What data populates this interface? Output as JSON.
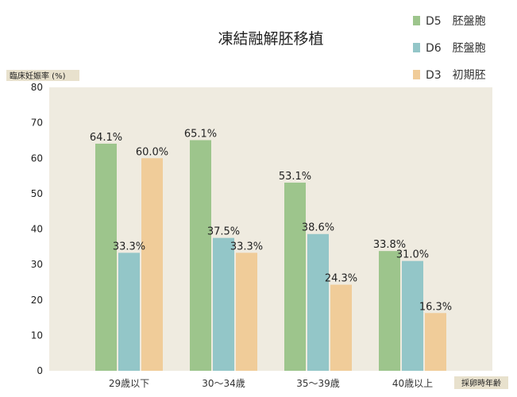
{
  "chart_data": {
    "type": "bar",
    "title": "凍結融解胚移植",
    "ylabel": "臨床妊娠率 (%)",
    "xlabel": "採卵時年齢",
    "ylim": [
      0,
      80
    ],
    "yticks": [
      0,
      10,
      20,
      30,
      40,
      50,
      60,
      70,
      80
    ],
    "categories": [
      "29歳以下",
      "30〜34歳",
      "35〜39歳",
      "40歳以上"
    ],
    "series": [
      {
        "name": "D5　胚盤胞",
        "color": "#9dc58c",
        "values": [
          64.1,
          65.1,
          53.1,
          33.8
        ],
        "labels": [
          "64.1%",
          "65.1%",
          "53.1%",
          "33.8%"
        ]
      },
      {
        "name": "D6　胚盤胞",
        "color": "#93c6c8",
        "values": [
          33.3,
          37.5,
          38.6,
          31.0
        ],
        "labels": [
          "33.3%",
          "37.5%",
          "38.6%",
          "31.0%"
        ]
      },
      {
        "name": "D3　初期胚",
        "color": "#f0cc99",
        "values": [
          60.0,
          33.3,
          24.3,
          16.3
        ],
        "labels": [
          "60.0%",
          "33.3%",
          "24.3%",
          "16.3%"
        ]
      }
    ],
    "grid": false,
    "legend_position": "top-right",
    "plot_background": "#efebe0",
    "tag_background": "#e8e1cd"
  }
}
